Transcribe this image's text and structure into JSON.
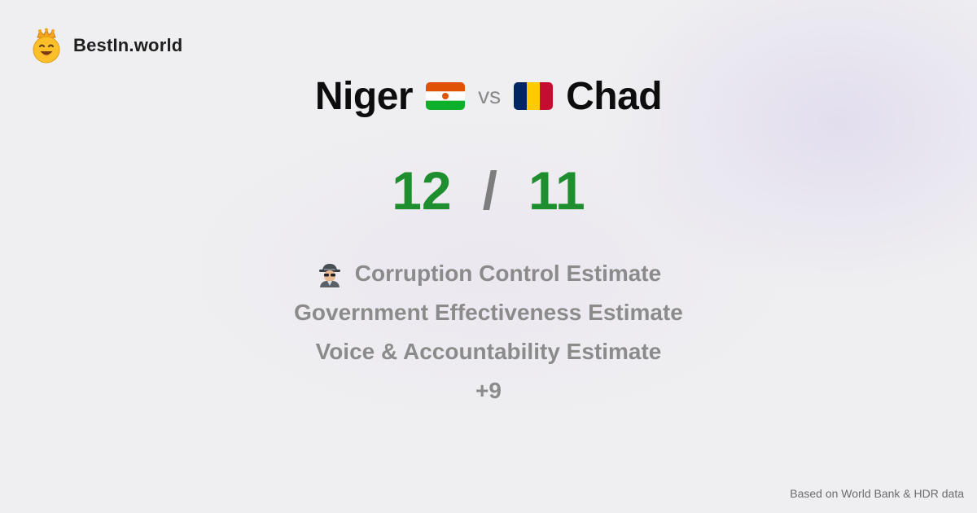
{
  "brand": {
    "name": "BestIn.world",
    "logo_icon": "crowned-smiley-icon"
  },
  "comparison": {
    "left_country": "Niger",
    "left_flag": "niger-flag-icon",
    "vs_label": "vs",
    "right_country": "Chad",
    "right_flag": "chad-flag-icon"
  },
  "scores": {
    "left": "12",
    "separator": "/",
    "right": "11"
  },
  "metrics": {
    "icon": "spy-icon",
    "items": [
      "Corruption Control Estimate",
      "Government Effectiveness Estimate",
      "Voice & Accountability Estimate"
    ],
    "more": "+9"
  },
  "footer": {
    "source": "Based on World Bank & HDR data"
  },
  "colors": {
    "score": "#1e8e2e",
    "muted": "#8b8b8b",
    "background": "#efeff1"
  }
}
